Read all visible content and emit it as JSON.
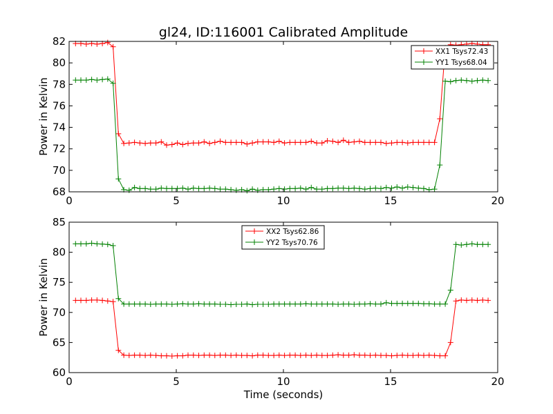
{
  "chart_data": [
    {
      "type": "line",
      "title": "gl24, ID:116001 Calibrated Amplitude",
      "xlabel": "",
      "ylabel": "Power in Kelvin",
      "xlim": [
        0,
        20
      ],
      "ylim": [
        68,
        82
      ],
      "xticks": [
        "0",
        "5",
        "10",
        "15",
        "20"
      ],
      "yticks": [
        "68",
        "70",
        "72",
        "74",
        "76",
        "78",
        "80",
        "82"
      ],
      "grid": false,
      "legend_position": "top-right",
      "x": [
        0.3,
        0.55,
        0.8,
        1.05,
        1.3,
        1.55,
        1.8,
        2.05,
        2.3,
        2.55,
        2.8,
        3.05,
        3.3,
        3.55,
        3.8,
        4.05,
        4.3,
        4.55,
        4.8,
        5.05,
        5.3,
        5.55,
        5.8,
        6.05,
        6.3,
        6.55,
        6.8,
        7.05,
        7.3,
        7.55,
        7.8,
        8.05,
        8.3,
        8.55,
        8.8,
        9.05,
        9.3,
        9.55,
        9.8,
        10.05,
        10.3,
        10.55,
        10.8,
        11.05,
        11.3,
        11.55,
        11.8,
        12.05,
        12.3,
        12.55,
        12.8,
        13.05,
        13.3,
        13.55,
        13.8,
        14.05,
        14.3,
        14.55,
        14.8,
        15.05,
        15.3,
        15.55,
        15.8,
        16.05,
        16.3,
        16.55,
        16.8,
        17.05,
        17.3,
        17.55,
        17.8,
        18.05,
        18.3,
        18.55,
        18.8,
        19.05,
        19.3,
        19.55
      ],
      "series": [
        {
          "name": "XX1 Tsys72.43",
          "color": "#ff0000",
          "values": [
            81.8,
            81.8,
            81.75,
            81.8,
            81.75,
            81.8,
            81.9,
            81.5,
            73.4,
            72.5,
            72.55,
            72.6,
            72.55,
            72.5,
            72.55,
            72.55,
            72.65,
            72.35,
            72.4,
            72.55,
            72.4,
            72.5,
            72.55,
            72.55,
            72.65,
            72.5,
            72.6,
            72.7,
            72.6,
            72.6,
            72.6,
            72.6,
            72.45,
            72.55,
            72.65,
            72.65,
            72.65,
            72.6,
            72.7,
            72.55,
            72.6,
            72.6,
            72.6,
            72.6,
            72.7,
            72.55,
            72.55,
            72.75,
            72.7,
            72.6,
            72.8,
            72.6,
            72.65,
            72.7,
            72.6,
            72.6,
            72.6,
            72.6,
            72.5,
            72.55,
            72.6,
            72.6,
            72.55,
            72.6,
            72.6,
            72.6,
            72.6,
            72.6,
            74.8,
            81.4,
            81.7,
            81.65,
            81.7,
            81.75,
            81.8,
            81.75,
            81.7,
            81.7
          ]
        },
        {
          "name": "YY1 Tsys68.04",
          "color": "#008000",
          "values": [
            78.4,
            78.4,
            78.4,
            78.45,
            78.4,
            78.45,
            78.5,
            78.1,
            69.2,
            68.2,
            68.15,
            68.4,
            68.3,
            68.3,
            68.25,
            68.25,
            68.35,
            68.3,
            68.3,
            68.3,
            68.35,
            68.25,
            68.35,
            68.3,
            68.3,
            68.35,
            68.3,
            68.25,
            68.25,
            68.2,
            68.15,
            68.2,
            68.1,
            68.25,
            68.15,
            68.2,
            68.2,
            68.25,
            68.3,
            68.25,
            68.3,
            68.3,
            68.35,
            68.25,
            68.4,
            68.25,
            68.25,
            68.3,
            68.3,
            68.35,
            68.35,
            68.3,
            68.35,
            68.3,
            68.25,
            68.3,
            68.35,
            68.3,
            68.4,
            68.35,
            68.45,
            68.35,
            68.45,
            68.4,
            68.35,
            68.3,
            68.2,
            68.25,
            70.5,
            78.3,
            78.25,
            78.35,
            78.4,
            78.35,
            78.3,
            78.35,
            78.4,
            78.35
          ]
        }
      ]
    },
    {
      "type": "line",
      "title": "",
      "xlabel": "Time (seconds)",
      "ylabel": "Power in Kelvin",
      "xlim": [
        0,
        20
      ],
      "ylim": [
        60,
        85
      ],
      "xticks": [
        "0",
        "5",
        "10",
        "15",
        "20"
      ],
      "yticks": [
        "60",
        "65",
        "70",
        "75",
        "80",
        "85"
      ],
      "grid": false,
      "legend_position": "top-center",
      "x": [
        0.3,
        0.55,
        0.8,
        1.05,
        1.3,
        1.55,
        1.8,
        2.05,
        2.3,
        2.55,
        2.8,
        3.05,
        3.3,
        3.55,
        3.8,
        4.05,
        4.3,
        4.55,
        4.8,
        5.05,
        5.3,
        5.55,
        5.8,
        6.05,
        6.3,
        6.55,
        6.8,
        7.05,
        7.3,
        7.55,
        7.8,
        8.05,
        8.3,
        8.55,
        8.8,
        9.05,
        9.3,
        9.55,
        9.8,
        10.05,
        10.3,
        10.55,
        10.8,
        11.05,
        11.3,
        11.55,
        11.8,
        12.05,
        12.3,
        12.55,
        12.8,
        13.05,
        13.3,
        13.55,
        13.8,
        14.05,
        14.3,
        14.55,
        14.8,
        15.05,
        15.3,
        15.55,
        15.8,
        16.05,
        16.3,
        16.55,
        16.8,
        17.05,
        17.3,
        17.55,
        17.8,
        18.05,
        18.3,
        18.55,
        18.8,
        19.05,
        19.3,
        19.55
      ],
      "series": [
        {
          "name": "XX2 Tsys62.86",
          "color": "#ff0000",
          "values": [
            72.0,
            72.0,
            72.0,
            72.05,
            72.05,
            72.0,
            71.9,
            71.8,
            63.7,
            62.9,
            62.85,
            62.9,
            62.9,
            62.85,
            62.9,
            62.85,
            62.8,
            62.8,
            62.75,
            62.8,
            62.8,
            62.9,
            62.9,
            62.85,
            62.9,
            62.9,
            62.85,
            62.9,
            62.9,
            62.85,
            62.9,
            62.85,
            62.85,
            62.8,
            62.9,
            62.9,
            62.85,
            62.85,
            62.9,
            62.85,
            62.9,
            62.9,
            62.85,
            62.9,
            62.85,
            62.9,
            62.85,
            62.85,
            62.9,
            62.95,
            62.9,
            62.9,
            62.95,
            62.9,
            62.9,
            62.85,
            62.9,
            62.85,
            62.85,
            62.8,
            62.85,
            62.9,
            62.85,
            62.85,
            62.9,
            62.85,
            62.9,
            62.85,
            62.8,
            62.8,
            65.0,
            71.9,
            72.05,
            72.0,
            72.05,
            72.0,
            72.05,
            72.0
          ]
        },
        {
          "name": "YY2 Tsys70.76",
          "color": "#008000",
          "values": [
            81.4,
            81.4,
            81.4,
            81.5,
            81.4,
            81.35,
            81.3,
            81.1,
            72.3,
            71.4,
            71.4,
            71.4,
            71.4,
            71.4,
            71.35,
            71.4,
            71.4,
            71.4,
            71.35,
            71.4,
            71.45,
            71.4,
            71.4,
            71.45,
            71.4,
            71.4,
            71.4,
            71.35,
            71.35,
            71.3,
            71.35,
            71.35,
            71.4,
            71.3,
            71.35,
            71.35,
            71.35,
            71.4,
            71.4,
            71.4,
            71.4,
            71.4,
            71.4,
            71.45,
            71.4,
            71.4,
            71.4,
            71.4,
            71.4,
            71.35,
            71.4,
            71.4,
            71.35,
            71.4,
            71.4,
            71.45,
            71.4,
            71.4,
            71.6,
            71.5,
            71.5,
            71.5,
            71.5,
            71.5,
            71.5,
            71.45,
            71.45,
            71.4,
            71.4,
            71.4,
            73.7,
            81.3,
            81.2,
            81.3,
            81.4,
            81.3,
            81.3,
            81.3
          ]
        }
      ]
    }
  ]
}
